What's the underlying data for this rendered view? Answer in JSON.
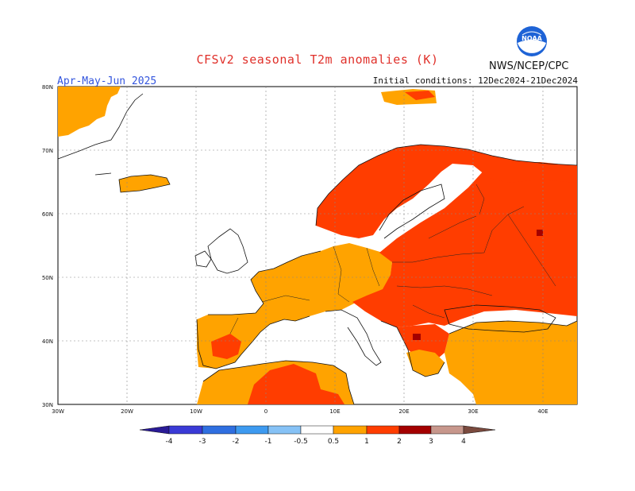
{
  "header": {
    "title": "CFSv2 seasonal T2m anomalies (K)",
    "period": "Apr-May-Jun 2025",
    "initial_conditions": "Initial conditions: 12Dec2024-21Dec2024",
    "agency": "NWS/NCEP/CPC",
    "logo_text": "NOAA"
  },
  "axes": {
    "lat_labels": [
      "30N",
      "40N",
      "50N",
      "60N",
      "70N",
      "80N"
    ],
    "lon_labels": [
      "30W",
      "20W",
      "10W",
      "0",
      "10E",
      "20E",
      "30E",
      "40E"
    ]
  },
  "colorbar": {
    "labels": [
      "-4",
      "-3",
      "-2",
      "-1",
      "-0.5",
      "0.5",
      "1",
      "2",
      "3",
      "4"
    ],
    "colors": [
      "#2a1b96",
      "#3a3ad6",
      "#2f6fe0",
      "#3d9af0",
      "#86c2f6",
      "#ffffff",
      "#ffa300",
      "#ff3d00",
      "#a40000",
      "#c7978c",
      "#7a4a3e"
    ]
  },
  "map_colors": {
    "land_outline": "#111111",
    "anomaly_05_1": "#ffa300",
    "anomaly_1_2": "#ff3d00",
    "anomaly_2_3": "#a40000"
  }
}
